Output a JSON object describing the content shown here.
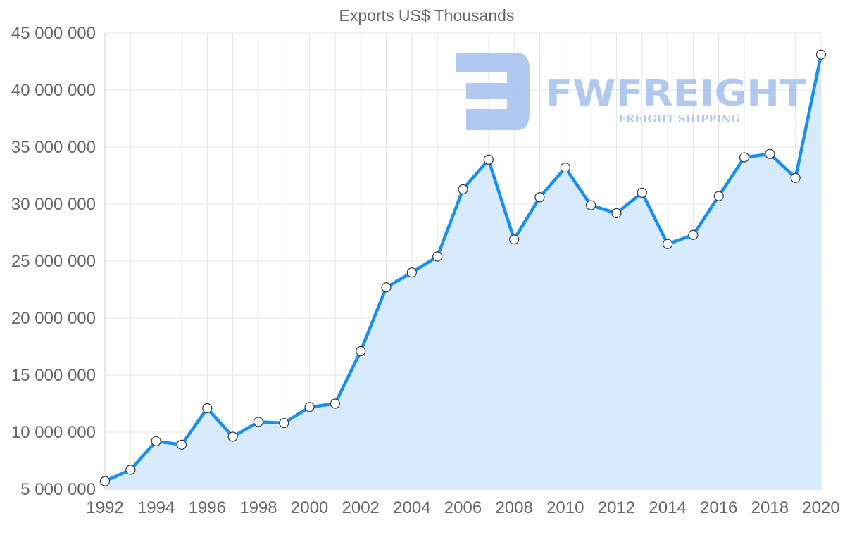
{
  "chart_data": {
    "type": "area",
    "title": "Exports US$ Thousands",
    "xlabel": "",
    "ylabel": "",
    "ylim": [
      5000000,
      45000000
    ],
    "yticks": [
      5000000,
      10000000,
      15000000,
      20000000,
      25000000,
      30000000,
      35000000,
      40000000,
      45000000
    ],
    "ytick_labels": [
      "5 000 000",
      "10 000 000",
      "15 000 000",
      "20 000 000",
      "25 000 000",
      "30 000 000",
      "35 000 000",
      "40 000 000",
      "45 000 000"
    ],
    "xlim": [
      1992,
      2020
    ],
    "xticks": [
      1992,
      1994,
      1996,
      1998,
      2000,
      2002,
      2004,
      2006,
      2008,
      2010,
      2012,
      2014,
      2016,
      2018,
      2020
    ],
    "xtick_labels": [
      "1992",
      "1994",
      "1996",
      "1998",
      "2000",
      "2002",
      "2004",
      "2006",
      "2008",
      "2010",
      "2012",
      "2014",
      "2016",
      "2018",
      "2020"
    ],
    "grid": true,
    "series": [
      {
        "name": "Exports US$ Thousands",
        "line_color": "#1a8ff0",
        "fill_color": "#d6eafc",
        "x": [
          1992,
          1993,
          1994,
          1995,
          1996,
          1997,
          1998,
          1999,
          2000,
          2001,
          2002,
          2003,
          2004,
          2005,
          2006,
          2007,
          2008,
          2009,
          2010,
          2011,
          2012,
          2013,
          2014,
          2015,
          2016,
          2017,
          2018,
          2019,
          2020
        ],
        "values": [
          5700000,
          6700000,
          9200000,
          8900000,
          12100000,
          9600000,
          10900000,
          10800000,
          12200000,
          12500000,
          17100000,
          22700000,
          24000000,
          25400000,
          31300000,
          33900000,
          26900000,
          30600000,
          33200000,
          29900000,
          29200000,
          31000000,
          26500000,
          27300000,
          30700000,
          34100000,
          34400000,
          32300000,
          43100000
        ]
      }
    ]
  },
  "watermark": {
    "brand": "FWFREIGHT",
    "tagline": "FREIGHT SHIPPING",
    "color": "#a9c3ee"
  }
}
